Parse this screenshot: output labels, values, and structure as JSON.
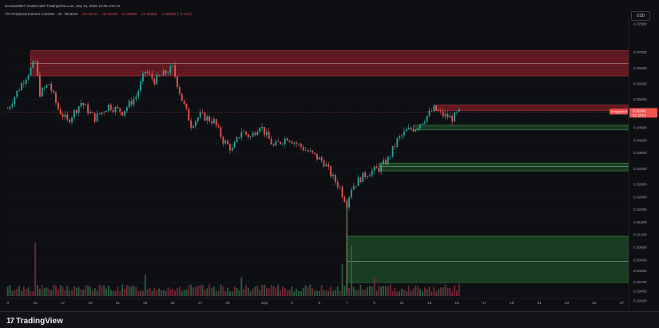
{
  "header": {
    "attribution": "sevvitar0907 created with TradingView.com, Sep 15, 2025 13:46 UTC+9",
    "instrument": "TXI Perpetual Futures Contract · 4h · Binance",
    "ohlc": [
      "O0.35121",
      "H0.35159",
      "L0.35069",
      "C0.35086",
      "−0.00038 (−0.11%)"
    ]
  },
  "currency": "USD",
  "footer": {
    "brand": "TradingView",
    "logo_glyph": "17"
  },
  "colors": {
    "background": "#0e0f13",
    "up": "#26a69a",
    "down": "#ef5350",
    "supply_zone": "#7a1c24",
    "demand_zone": "#1c4a24"
  },
  "chart_data": {
    "type": "candlestick",
    "title": "",
    "xlabel": "",
    "ylabel": "",
    "ylim": [
      0.2925,
      0.379
    ],
    "y_ticks": [
      "0.37900",
      "0.37000",
      "0.36500",
      "0.36000",
      "0.35500",
      "0.35000",
      "0.34600",
      "0.34200",
      "0.33800",
      "0.33300",
      "0.32800",
      "0.32400",
      "0.32000",
      "0.31600",
      "0.31200",
      "0.30800",
      "0.30400",
      "0.30050",
      "0.29700",
      "0.29400",
      "0.29100"
    ],
    "x_ticks": [
      {
        "label": "3",
        "t": 0
      },
      {
        "label": "15",
        "t": 12
      },
      {
        "label": "17",
        "t": 24
      },
      {
        "label": "19",
        "t": 36
      },
      {
        "label": "21",
        "t": 48
      },
      {
        "label": "23",
        "t": 60
      },
      {
        "label": "25",
        "t": 72
      },
      {
        "label": "27",
        "t": 84
      },
      {
        "label": "29",
        "t": 96
      },
      {
        "label": "Sep",
        "t": 112
      },
      {
        "label": "3",
        "t": 124
      },
      {
        "label": "5",
        "t": 136
      },
      {
        "label": "7",
        "t": 148
      },
      {
        "label": "9",
        "t": 160
      },
      {
        "label": "11",
        "t": 172
      },
      {
        "label": "13",
        "t": 184
      },
      {
        "label": "15",
        "t": 196
      },
      {
        "label": "17",
        "t": 208
      },
      {
        "label": "19",
        "t": 220
      },
      {
        "label": "21",
        "t": 232
      },
      {
        "label": "23",
        "t": 244
      },
      {
        "label": "25",
        "t": 256
      },
      {
        "label": "27",
        "t": 268
      }
    ],
    "x_range": [
      -2,
      271
    ],
    "current_price": "0.35086",
    "countdown": "01:13:14",
    "price_tag_label": "TXIUSDT.P",
    "price_line": 0.351,
    "zones": [
      {
        "kind": "supply",
        "name": "upper-supply-zone",
        "t_start": 10,
        "t_end": 271,
        "price_top": 0.3705,
        "price_bottom": 0.3625,
        "mid": 0.3665
      },
      {
        "kind": "supply",
        "name": "mid-supply-zone",
        "t_start": 186,
        "t_end": 271,
        "price_top": 0.3532,
        "price_bottom": 0.3515,
        "mid": null
      },
      {
        "kind": "demand",
        "name": "upper-demand-zone",
        "t_start": 177,
        "t_end": 271,
        "price_top": 0.3468,
        "price_bottom": 0.3453,
        "mid": null
      },
      {
        "kind": "demand",
        "name": "mid-demand-zone",
        "t_start": 162,
        "t_end": 271,
        "price_top": 0.3348,
        "price_bottom": 0.3323,
        "mid": 0.3337
      },
      {
        "kind": "demand",
        "name": "lower-demand-zone",
        "t_start": 148,
        "t_end": 271,
        "price_top": 0.3115,
        "price_bottom": 0.2968,
        "mid": 0.3035
      }
    ],
    "close_path": [
      [
        0,
        0.352
      ],
      [
        6,
        0.36
      ],
      [
        12,
        0.367
      ],
      [
        14,
        0.357
      ],
      [
        18,
        0.36
      ],
      [
        22,
        0.352
      ],
      [
        26,
        0.348
      ],
      [
        32,
        0.354
      ],
      [
        38,
        0.349
      ],
      [
        44,
        0.353
      ],
      [
        50,
        0.351
      ],
      [
        56,
        0.356
      ],
      [
        60,
        0.364
      ],
      [
        64,
        0.361
      ],
      [
        68,
        0.363
      ],
      [
        72,
        0.365
      ],
      [
        76,
        0.355
      ],
      [
        80,
        0.347
      ],
      [
        84,
        0.35
      ],
      [
        90,
        0.348
      ],
      [
        94,
        0.342
      ],
      [
        98,
        0.339
      ],
      [
        102,
        0.345
      ],
      [
        106,
        0.343
      ],
      [
        110,
        0.347
      ],
      [
        116,
        0.34
      ],
      [
        122,
        0.343
      ],
      [
        126,
        0.341
      ],
      [
        132,
        0.338
      ],
      [
        138,
        0.335
      ],
      [
        142,
        0.33
      ],
      [
        145,
        0.327
      ],
      [
        146,
        0.325
      ],
      [
        148,
        0.322
      ],
      [
        150,
        0.327
      ],
      [
        154,
        0.33
      ],
      [
        158,
        0.332
      ],
      [
        162,
        0.333
      ],
      [
        166,
        0.336
      ],
      [
        170,
        0.342
      ],
      [
        174,
        0.345
      ],
      [
        178,
        0.346
      ],
      [
        182,
        0.349
      ],
      [
        186,
        0.352
      ],
      [
        190,
        0.35
      ],
      [
        194,
        0.349
      ],
      [
        197,
        0.351
      ]
    ],
    "volume": {
      "max": 180,
      "baseline": 8,
      "spikes": [
        [
          12,
          100
        ],
        [
          148,
          180
        ],
        [
          150,
          95
        ],
        [
          146,
          60
        ],
        [
          60,
          40
        ],
        [
          102,
          35
        ],
        [
          160,
          35
        ]
      ]
    }
  }
}
